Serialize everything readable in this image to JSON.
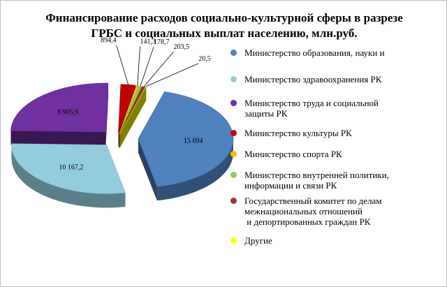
{
  "chart_data": {
    "type": "pie",
    "title": [
      "Финансирование расходов социально-культурной сферы в разрезе",
      "ГРБС и социальных выплат населению, млн.руб."
    ],
    "slices": [
      {
        "label": [
          "Министерство образования, науки и"
        ],
        "value": 15094,
        "value_label": "15 094",
        "color": "#4f81bd"
      },
      {
        "label": [
          "Министерство здравоохранения РК"
        ],
        "value": 10167.2,
        "value_label": "10 167,2",
        "color": "#93cddd"
      },
      {
        "label": [
          "Министерство труда и социальной",
          "защиты РК"
        ],
        "value": 8905.9,
        "value_label": "8 905,9",
        "color": "#7030a0"
      },
      {
        "label": [
          "Министерство культуры РК"
        ],
        "value": 894.4,
        "value_label": "894,4",
        "color": "#c00000"
      },
      {
        "label": [
          "Министерство спорта РК"
        ],
        "value": 141.3,
        "value_label": "141,3",
        "color": "#ffc000"
      },
      {
        "label": [
          "Министерство внутренней политики,",
          "информации и связи РК"
        ],
        "value": 178.7,
        "value_label": "178,7",
        "color": "#92d050"
      },
      {
        "label": [
          "Государственный комитет по делам",
          "межнациональных отношений",
          " и депортированных граждан РК"
        ],
        "value": 203.5,
        "value_label": "203,5",
        "color": "#953735"
      },
      {
        "label": [
          "Другие"
        ],
        "value": 20.5,
        "value_label": "20,5",
        "color": "#ffff00"
      }
    ],
    "legend_position": "right"
  }
}
